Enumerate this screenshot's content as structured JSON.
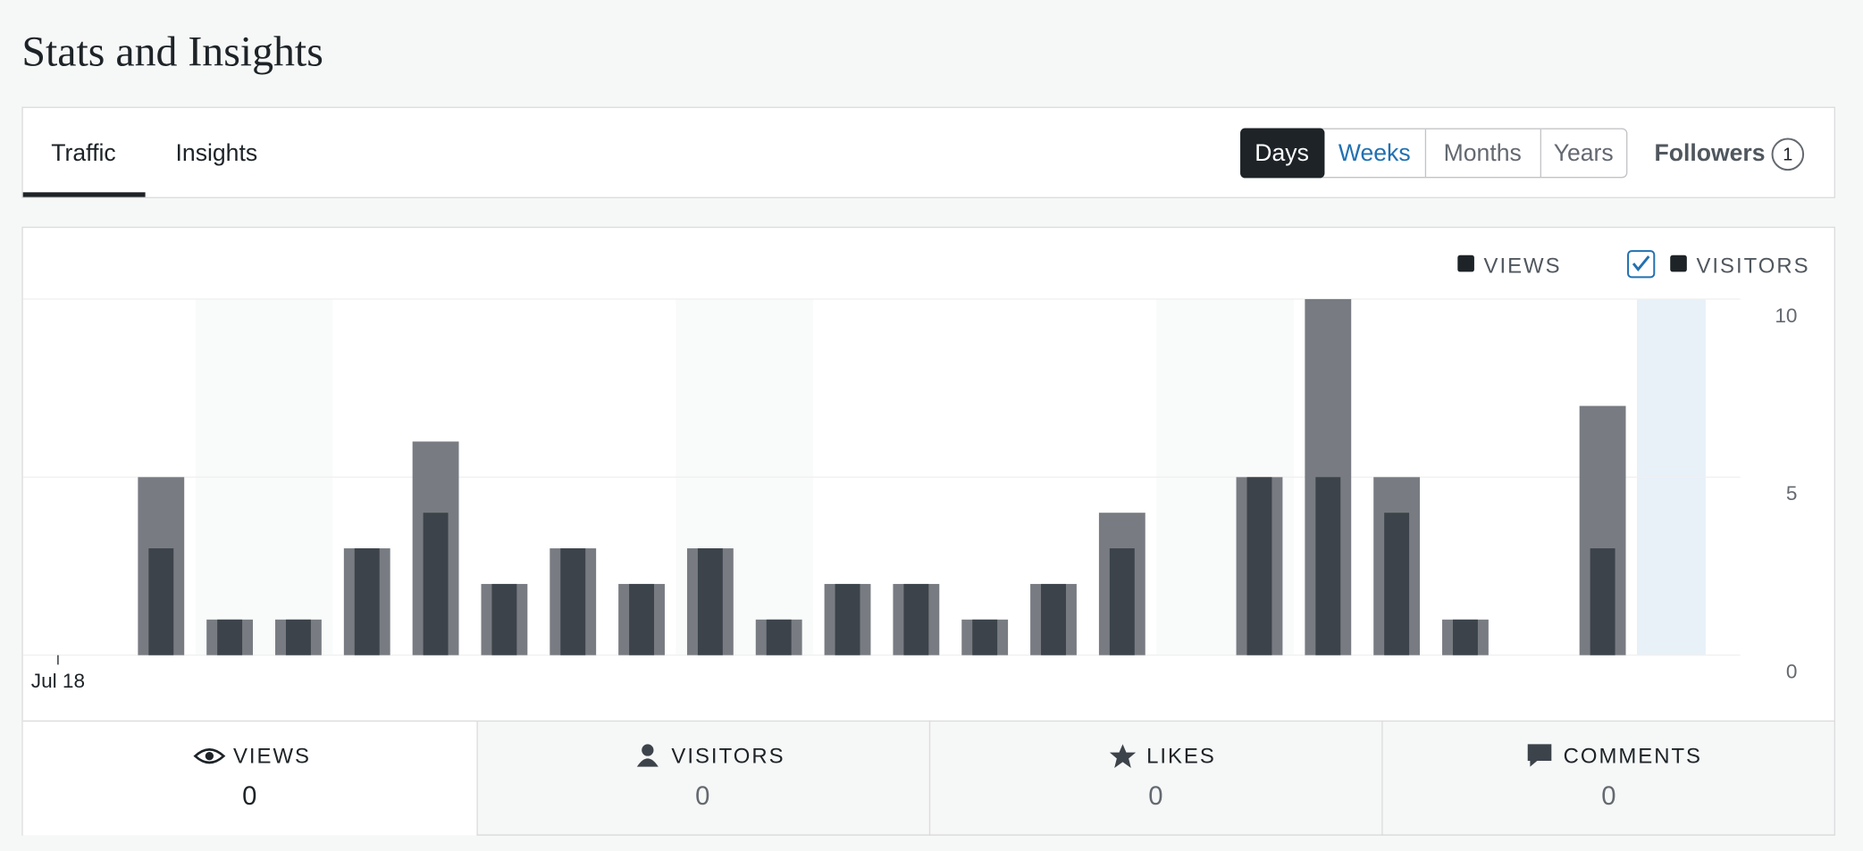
{
  "header": {
    "title": "Stats and Insights"
  },
  "tabs": [
    "Traffic",
    "Insights"
  ],
  "periods": [
    "Days",
    "Weeks",
    "Months",
    "Years"
  ],
  "followers": {
    "label": "Followers",
    "count": "1"
  },
  "chart_data": {
    "type": "bar",
    "categories": [
      "Jul 18",
      null,
      null,
      null,
      null,
      null,
      null,
      null,
      null,
      null,
      null,
      null,
      null,
      null,
      null,
      null,
      null,
      null,
      null,
      null,
      null,
      null,
      null,
      null
    ],
    "series": [
      {
        "name": "VIEWS",
        "color": "#787c82",
        "values": [
          0,
          5,
          1,
          1,
          3,
          6,
          2,
          3,
          2,
          3,
          1,
          2,
          2,
          1,
          2,
          4,
          0,
          5,
          10,
          5,
          1,
          0,
          7,
          0
        ]
      },
      {
        "name": "VISITORS",
        "color": "#3c434a",
        "values": [
          0,
          3,
          1,
          1,
          3,
          4,
          2,
          3,
          2,
          3,
          1,
          2,
          2,
          1,
          2,
          3,
          0,
          5,
          5,
          4,
          1,
          0,
          3,
          0
        ]
      }
    ],
    "ylim": [
      0,
      10
    ],
    "yticks": [
      0,
      5,
      10
    ],
    "grid": true
  },
  "summary": [
    {
      "label": "VIEWS",
      "value": "0"
    },
    {
      "label": "VISITORS",
      "value": "0"
    },
    {
      "label": "LIKES",
      "value": "0"
    },
    {
      "label": "COMMENTS",
      "value": "0"
    }
  ]
}
